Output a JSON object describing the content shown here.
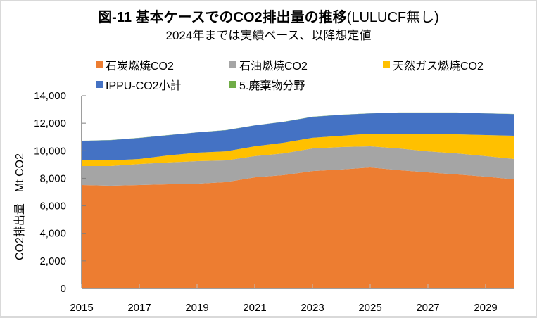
{
  "chart_data": {
    "type": "area",
    "stacked": true,
    "title": "図-11  基本ケースでのCO2排出量の推移",
    "title_tail": "(LULUCF無し)",
    "subtitle": "2024年までは実績ベース、以降想定値",
    "xlabel": "",
    "ylabel": "CO2排出量　Mt CO2",
    "x": [
      2015,
      2016,
      2017,
      2018,
      2019,
      2020,
      2021,
      2022,
      2023,
      2024,
      2025,
      2026,
      2027,
      2028,
      2029,
      2030
    ],
    "x_tick_labels": [
      "2015",
      "2017",
      "2019",
      "2021",
      "2023",
      "2025",
      "2027",
      "2029"
    ],
    "y_tick_labels": [
      "0",
      "2,000",
      "4,000",
      "6,000",
      "8,000",
      "10,000",
      "12,000",
      "14,000"
    ],
    "ylim": [
      0,
      14000
    ],
    "xlim": [
      2015,
      2030
    ],
    "grid": false,
    "legend_position": "top",
    "series": [
      {
        "name": "石炭燃焼CO2",
        "color": "#ed7d31",
        "values": [
          7510,
          7460,
          7510,
          7560,
          7610,
          7720,
          8070,
          8230,
          8530,
          8640,
          8790,
          8590,
          8430,
          8280,
          8120,
          7920
        ]
      },
      {
        "name": "石油燃焼CO2",
        "color": "#a5a5a5",
        "values": [
          1380,
          1430,
          1530,
          1590,
          1640,
          1580,
          1540,
          1580,
          1640,
          1630,
          1530,
          1580,
          1530,
          1530,
          1490,
          1480
        ]
      },
      {
        "name": "天然ガス燃焼CO2",
        "color": "#ffc000",
        "values": [
          410,
          410,
          360,
          510,
          610,
          660,
          710,
          770,
          770,
          820,
          920,
          1070,
          1280,
          1380,
          1530,
          1690
        ]
      },
      {
        "name": "IPPU-CO2小計",
        "color": "#4472c4",
        "values": [
          1420,
          1470,
          1530,
          1470,
          1470,
          1530,
          1520,
          1520,
          1520,
          1520,
          1470,
          1530,
          1530,
          1580,
          1570,
          1570
        ]
      },
      {
        "name": "5.廃棄物分野",
        "color": "#70ad47",
        "values": [
          10,
          10,
          10,
          10,
          10,
          10,
          10,
          10,
          10,
          10,
          10,
          10,
          10,
          10,
          10,
          10
        ]
      }
    ]
  }
}
